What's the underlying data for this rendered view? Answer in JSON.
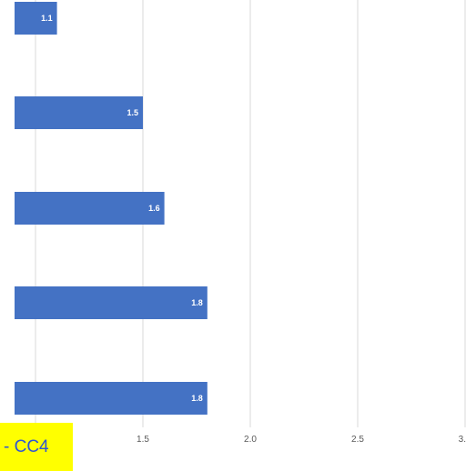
{
  "chart_data": {
    "type": "bar",
    "orientation": "horizontal",
    "values": [
      1.1,
      1.5,
      1.6,
      1.8,
      1.8
    ],
    "data_labels": [
      "1.1",
      "1.5",
      "1.6",
      "1.8",
      "1.8"
    ],
    "x_ticks": [
      {
        "value": 1.5,
        "label": "1.5"
      },
      {
        "value": 2.0,
        "label": "2.0"
      },
      {
        "value": 2.5,
        "label": "2.5"
      },
      {
        "value": 3.0,
        "label": "3."
      }
    ],
    "xlim": [
      0.9,
      3.1
    ],
    "grid": true,
    "bar_color": "#4472c4",
    "grid_color": "#d9d9d9"
  },
  "overlay": {
    "label": "- CC4",
    "background": "#ffff00",
    "text_color": "#2f55d4"
  }
}
